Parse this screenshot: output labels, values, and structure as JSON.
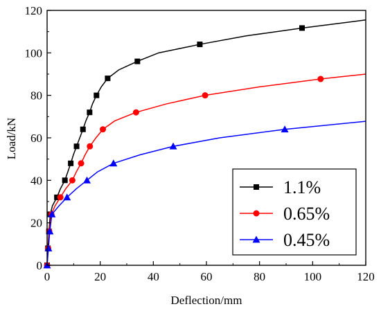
{
  "chart_data": {
    "type": "line",
    "title": "",
    "xlabel": "Deflection/mm",
    "ylabel": "Load/kN",
    "xlim": [
      0,
      120
    ],
    "ylim": [
      0,
      120
    ],
    "xticks": [
      0,
      20,
      40,
      60,
      80,
      100,
      120
    ],
    "yticks": [
      0,
      20,
      40,
      60,
      80,
      100,
      120
    ],
    "xtick_labels": [
      "0",
      "20",
      "40",
      "60",
      "80",
      "100",
      "120"
    ],
    "ytick_labels": [
      "0",
      "20",
      "40",
      "60",
      "80",
      "100",
      "120"
    ],
    "grid": false,
    "legend_position": "bottom-right",
    "series": [
      {
        "name": "1.1%",
        "color": "#000000",
        "marker": "square",
        "curve": [
          [
            0,
            0
          ],
          [
            0.3,
            8
          ],
          [
            0.7,
            16
          ],
          [
            1.2,
            24
          ],
          [
            2.0,
            28
          ],
          [
            3.7,
            32
          ],
          [
            5.0,
            36
          ],
          [
            6.7,
            40
          ],
          [
            7.8,
            44
          ],
          [
            8.9,
            48
          ],
          [
            9.9,
            52
          ],
          [
            11.1,
            56
          ],
          [
            12.3,
            60
          ],
          [
            13.5,
            64
          ],
          [
            14.6,
            68
          ],
          [
            16.0,
            72
          ],
          [
            17.1,
            76
          ],
          [
            18.6,
            80
          ],
          [
            20.4,
            84
          ],
          [
            22.8,
            88
          ],
          [
            27.0,
            92
          ],
          [
            34.0,
            96
          ],
          [
            42.0,
            100
          ],
          [
            57.5,
            104
          ],
          [
            75.0,
            108
          ],
          [
            96.0,
            111.7
          ],
          [
            120,
            115.5
          ]
        ],
        "markers": [
          [
            0,
            0
          ],
          [
            0.3,
            8
          ],
          [
            0.7,
            16
          ],
          [
            1.2,
            24
          ],
          [
            3.7,
            32
          ],
          [
            6.7,
            40
          ],
          [
            8.9,
            48
          ],
          [
            11.1,
            56
          ],
          [
            13.5,
            64
          ],
          [
            16.0,
            72
          ],
          [
            18.6,
            80
          ],
          [
            22.8,
            88
          ],
          [
            34.0,
            96
          ],
          [
            57.5,
            104
          ],
          [
            96.0,
            111.7
          ]
        ]
      },
      {
        "name": "0.65%",
        "color": "#ff0000",
        "marker": "circle",
        "curve": [
          [
            0,
            0
          ],
          [
            0.4,
            8
          ],
          [
            0.8,
            16
          ],
          [
            1.6,
            24
          ],
          [
            3.0,
            28
          ],
          [
            5.0,
            32
          ],
          [
            7.0,
            36
          ],
          [
            9.5,
            40
          ],
          [
            11.0,
            44
          ],
          [
            12.8,
            48
          ],
          [
            14.3,
            52
          ],
          [
            16.1,
            56
          ],
          [
            18.4,
            60
          ],
          [
            21.0,
            64
          ],
          [
            25.5,
            68
          ],
          [
            33.5,
            72
          ],
          [
            45.0,
            76
          ],
          [
            59.5,
            80
          ],
          [
            80.0,
            84
          ],
          [
            103.0,
            87.7
          ],
          [
            120,
            90
          ]
        ],
        "markers": [
          [
            0,
            0
          ],
          [
            0.4,
            8
          ],
          [
            0.8,
            16
          ],
          [
            1.6,
            24
          ],
          [
            5.0,
            32
          ],
          [
            9.5,
            40
          ],
          [
            12.8,
            48
          ],
          [
            16.1,
            56
          ],
          [
            21.0,
            64
          ],
          [
            33.5,
            72
          ],
          [
            59.5,
            80
          ],
          [
            103.0,
            87.7
          ]
        ]
      },
      {
        "name": "0.45%",
        "color": "#0000ff",
        "marker": "triangle",
        "curve": [
          [
            0,
            0
          ],
          [
            0.5,
            8
          ],
          [
            1.0,
            16
          ],
          [
            1.8,
            24
          ],
          [
            4.5,
            28
          ],
          [
            7.5,
            32
          ],
          [
            11.0,
            36
          ],
          [
            15.0,
            40
          ],
          [
            19.0,
            44
          ],
          [
            25.0,
            48
          ],
          [
            35.0,
            52
          ],
          [
            47.5,
            56
          ],
          [
            65.0,
            60
          ],
          [
            89.5,
            64
          ],
          [
            120,
            67.8
          ]
        ],
        "markers": [
          [
            0,
            0
          ],
          [
            0.5,
            8
          ],
          [
            1.0,
            16
          ],
          [
            1.8,
            24
          ],
          [
            7.5,
            32
          ],
          [
            15.0,
            40
          ],
          [
            25.0,
            48
          ],
          [
            47.5,
            56
          ],
          [
            89.5,
            64
          ]
        ]
      }
    ]
  }
}
